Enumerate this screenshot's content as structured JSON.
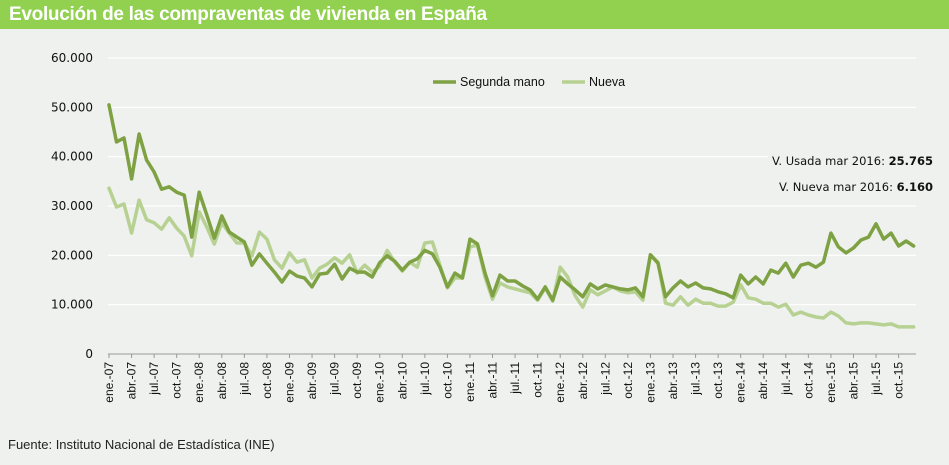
{
  "title": "Evolución de las compraventas de vivienda en España",
  "footer": "Fuente: Instituto Nacional de Estadística (INE)",
  "annotations": {
    "used_label": "V. Usada mar 2016:",
    "used_value": "25.765",
    "new_label": "V. Nueva mar 2016:",
    "new_value": "6.160"
  },
  "colors": {
    "used": "#7ea243",
    "new": "#b7d192",
    "grid": "#ffffff",
    "title_bg": "#92d050"
  },
  "chart_data": {
    "type": "line",
    "title": "Evolución de las compraventas de vivienda en España",
    "xlabel": "",
    "ylabel": "",
    "ylim": [
      0,
      60000
    ],
    "yticks": [
      0,
      10000,
      20000,
      30000,
      40000,
      50000,
      60000
    ],
    "ytick_labels": [
      "0",
      "10.000",
      "20.000",
      "30.000",
      "40.000",
      "50.000",
      "60.000"
    ],
    "xtick_labels": [
      "ene.-07",
      "abr.-07",
      "jul.-07",
      "oct.-07",
      "ene.-08",
      "abr.-08",
      "jul.-08",
      "oct.-08",
      "ene.-09",
      "abr.-09",
      "jul.-09",
      "oct.-09",
      "ene.-10",
      "abr.-10",
      "jul.-10",
      "oct.-10",
      "ene.-11",
      "abr.-11",
      "jul.-11",
      "oct.-11",
      "ene.-12",
      "abr.-12",
      "jul.-12",
      "oct.-12",
      "ene.-13",
      "abr.-13",
      "jul.-13",
      "oct.-13",
      "ene.-14",
      "abr.-14",
      "jul.-14",
      "oct.-14",
      "ene.-15",
      "abr.-15",
      "jul.-15",
      "oct.-15"
    ],
    "x_start": "ene.-07",
    "x_step": "month",
    "grid": true,
    "legend_position": "top-center",
    "series": [
      {
        "name": "Segunda mano",
        "values": [
          50500,
          43000,
          43800,
          35500,
          44600,
          39300,
          36900,
          33400,
          33900,
          32800,
          32200,
          23700,
          32800,
          28200,
          23500,
          28000,
          24700,
          23700,
          22700,
          18000,
          20300,
          18400,
          16600,
          14600,
          16800,
          15800,
          15400,
          13600,
          16200,
          16400,
          18200,
          15200,
          17400,
          16600,
          16600,
          15600,
          18500,
          19900,
          18800,
          17000,
          18600,
          19300,
          21000,
          20300,
          17600,
          13600,
          16400,
          15400,
          23300,
          22300,
          16400,
          11800,
          16000,
          14800,
          14800,
          13800,
          13000,
          11100,
          13600,
          10900,
          15600,
          14200,
          13000,
          11600,
          14200,
          13200,
          14000,
          13600,
          13200,
          13000,
          13400,
          11600,
          20100,
          18400,
          11600,
          13400,
          14800,
          13600,
          14400,
          13400,
          13200,
          12600,
          12200,
          11400,
          16000,
          14200,
          15600,
          14200,
          17000,
          16400,
          18400,
          15600,
          18000,
          18400,
          17600,
          18600,
          24500,
          21700,
          20500,
          21500,
          23100,
          23700,
          26400,
          23300,
          24500,
          21900,
          22900,
          21900
        ]
      },
      {
        "name": "Nueva",
        "values": [
          33600,
          29800,
          30400,
          24500,
          31200,
          27200,
          26600,
          25300,
          27600,
          25500,
          23900,
          19900,
          28800,
          25700,
          22300,
          26600,
          24500,
          22500,
          22500,
          19900,
          24700,
          23300,
          19100,
          17400,
          20500,
          18600,
          19100,
          15400,
          17400,
          18200,
          19500,
          18400,
          20100,
          16400,
          18000,
          16600,
          17800,
          21000,
          18600,
          16800,
          18600,
          17600,
          22500,
          22700,
          18000,
          13400,
          15400,
          15400,
          21700,
          22100,
          15600,
          11100,
          14400,
          13600,
          13200,
          12800,
          12400,
          10900,
          13400,
          10700,
          17600,
          15600,
          11800,
          9500,
          13000,
          12000,
          12800,
          13600,
          12800,
          12400,
          12600,
          10900,
          20100,
          18600,
          10300,
          9900,
          11600,
          9900,
          11100,
          10300,
          10300,
          9700,
          9700,
          10500,
          14000,
          11400,
          11100,
          10300,
          10300,
          9500,
          10100,
          7900,
          8500,
          7900,
          7500,
          7300,
          8500,
          7700,
          6300,
          6100,
          6300,
          6300,
          6100,
          5900,
          6100,
          5500,
          5500,
          5500
        ]
      }
    ]
  }
}
